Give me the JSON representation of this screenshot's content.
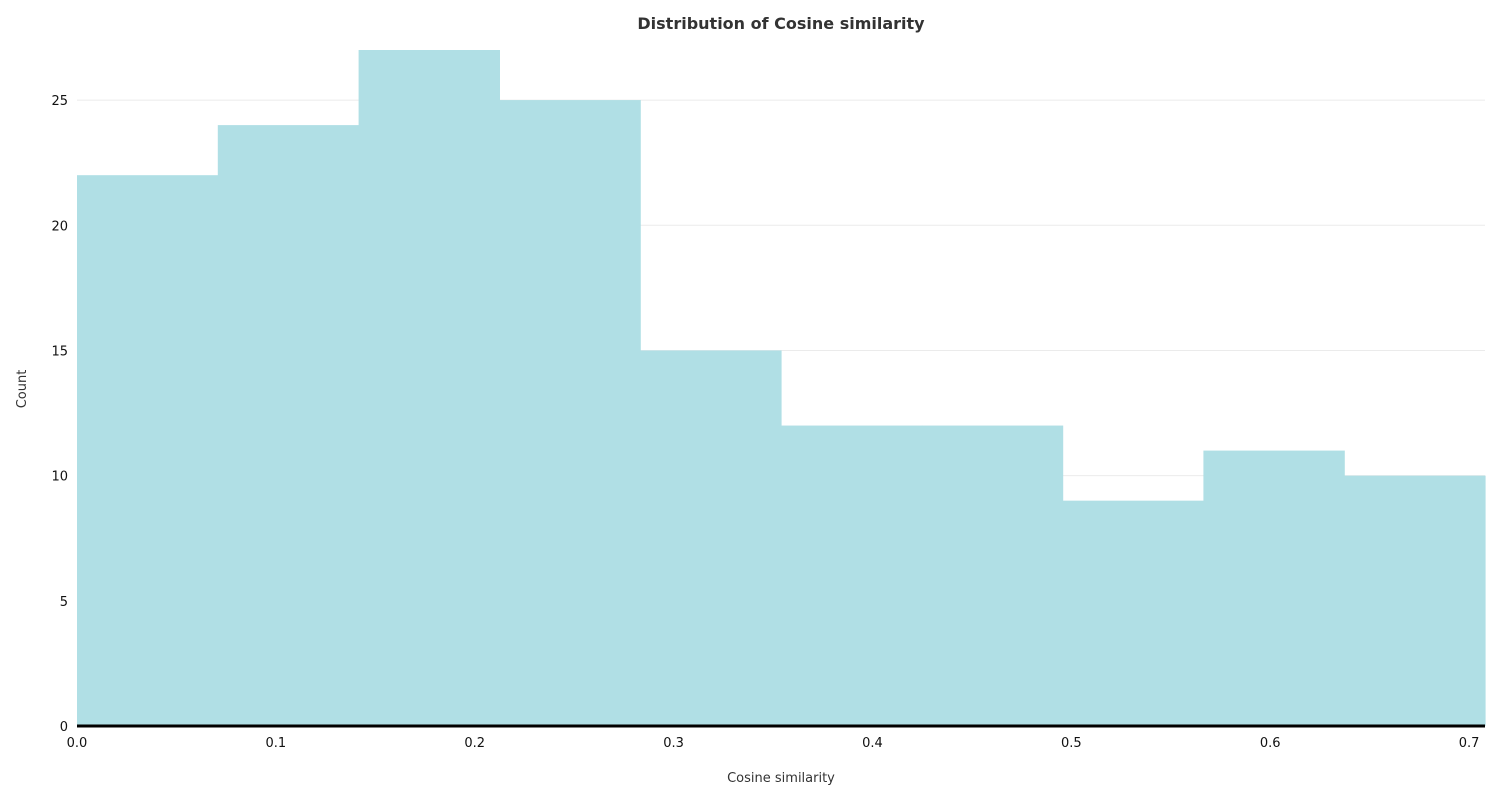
{
  "chart_data": {
    "type": "bar",
    "histogram": true,
    "title": "Distribution of Cosine similarity",
    "xlabel": "Cosine similarity",
    "ylabel": "Count",
    "bin_edges": [
      0.0,
      0.0708,
      0.1416,
      0.2124,
      0.2832,
      0.354,
      0.4248,
      0.4956,
      0.5664,
      0.6372,
      0.708
    ],
    "values": [
      22,
      24,
      27,
      25,
      15,
      12,
      12,
      9,
      11,
      10
    ],
    "xlim": [
      0.0,
      0.708
    ],
    "ylim": [
      0,
      27
    ],
    "x_ticks": [
      {
        "value": 0.0,
        "label": "0.0"
      },
      {
        "value": 0.1,
        "label": "0.1"
      },
      {
        "value": 0.2,
        "label": "0.2"
      },
      {
        "value": 0.3,
        "label": "0.3"
      },
      {
        "value": 0.4,
        "label": "0.4"
      },
      {
        "value": 0.5,
        "label": "0.5"
      },
      {
        "value": 0.6,
        "label": "0.6"
      },
      {
        "value": 0.7,
        "label": "0.7"
      }
    ],
    "y_ticks": [
      {
        "value": 0,
        "label": "0"
      },
      {
        "value": 5,
        "label": "5"
      },
      {
        "value": 10,
        "label": "10"
      },
      {
        "value": 15,
        "label": "15"
      },
      {
        "value": 20,
        "label": "20"
      },
      {
        "value": 25,
        "label": "25"
      }
    ],
    "grid": "horizontal",
    "legend": "none",
    "bar_color": "#b0dfe5"
  }
}
